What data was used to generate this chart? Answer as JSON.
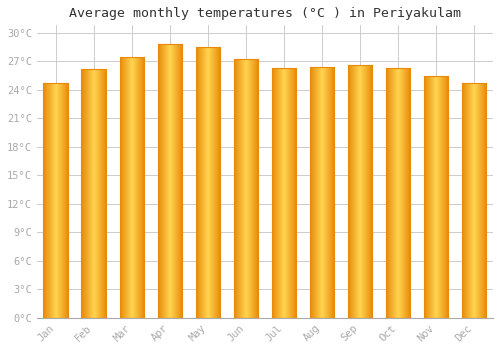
{
  "title": "Average monthly temperatures (°C ) in Periyakulam",
  "months": [
    "Jan",
    "Feb",
    "Mar",
    "Apr",
    "May",
    "Jun",
    "Jul",
    "Aug",
    "Sep",
    "Oct",
    "Nov",
    "Dec"
  ],
  "temperatures": [
    24.7,
    26.2,
    27.5,
    28.8,
    28.5,
    27.2,
    26.3,
    26.4,
    26.6,
    26.3,
    25.5,
    24.7
  ],
  "bar_color_dark": "#E8890A",
  "bar_color_mid": "#FFD040",
  "bar_color_light": "#FFE070",
  "background_color": "#FFFFFF",
  "plot_bg_color": "#FFFFFF",
  "grid_color": "#CCCCCC",
  "ytick_step": 3,
  "ymin": 0,
  "ymax": 30,
  "title_fontsize": 9.5,
  "tick_fontsize": 7.5,
  "tick_color": "#AAAAAA",
  "font_family": "monospace",
  "bar_width": 0.65,
  "gradient_steps": 50
}
